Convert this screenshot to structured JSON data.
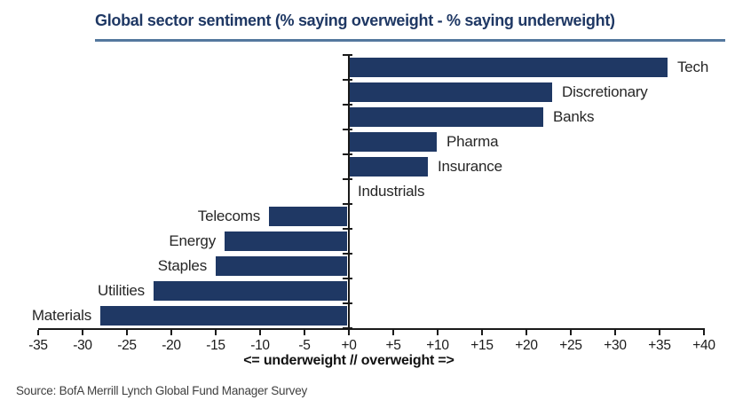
{
  "chart_data": {
    "type": "bar",
    "orientation": "horizontal",
    "title": "Global sector sentiment (% saying overweight - % saying underweight)",
    "categories": [
      "Tech",
      "Discretionary",
      "Banks",
      "Pharma",
      "Insurance",
      "Industrials",
      "Telecoms",
      "Energy",
      "Staples",
      "Utilities",
      "Materials"
    ],
    "values": [
      36,
      23,
      22,
      10,
      9,
      0,
      -9,
      -14,
      -15,
      -22,
      -28
    ],
    "xlabel": "<= underweight // overweight =>",
    "xlim": [
      -35,
      40
    ],
    "xticks": [
      -35,
      -30,
      -25,
      -20,
      -15,
      -10,
      -5,
      0,
      5,
      10,
      15,
      20,
      25,
      30,
      35,
      40
    ],
    "xtick_labels": [
      "-35",
      "-30",
      "-25",
      "-20",
      "-15",
      "-10",
      "-5",
      "+0",
      "+5",
      "+10",
      "+15",
      "+20",
      "+25",
      "+30",
      "+35",
      "+40"
    ],
    "grid": false,
    "legend": false,
    "bar_color": "#1F3864"
  },
  "source": "Source: BofA Merrill Lynch Global Fund Manager Survey",
  "colors": {
    "title": "#1F3864",
    "title_rule": "#54789E",
    "bar": "#1F3864",
    "axis": "#1a1a1a",
    "label_text": "#262626",
    "source_text": "#3f3f3f"
  }
}
